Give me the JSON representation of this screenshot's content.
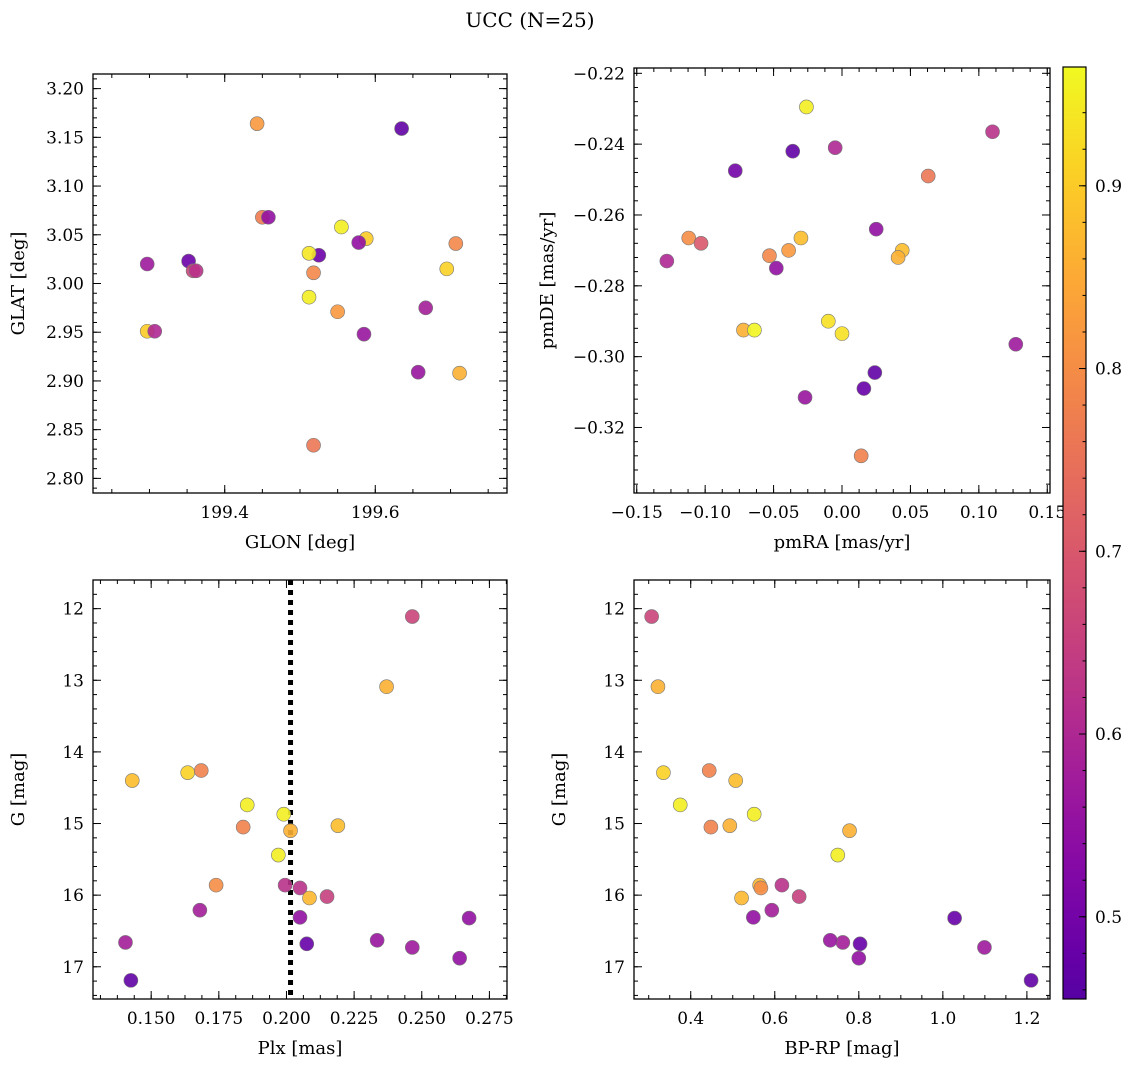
{
  "figure": {
    "title": "UCC (N=25)"
  },
  "colorbar": {
    "cmap": "plasma",
    "vmin": 0.455,
    "vmax": 0.965,
    "ticks": [
      0.5,
      0.6,
      0.7,
      0.8,
      0.9
    ],
    "tick_labels": [
      "0.5",
      "0.6",
      "0.7",
      "0.8",
      "0.9"
    ]
  },
  "chart_data": [
    {
      "type": "scatter",
      "id": "glon-glat",
      "xlabel": "GLON [deg]",
      "ylabel": "GLAT [deg]",
      "xlim": [
        199.225,
        199.775
      ],
      "ylim": [
        2.785,
        3.215
      ],
      "xticks": [
        199.4,
        199.6
      ],
      "xtick_labels": [
        "199.4",
        "199.6"
      ],
      "yticks": [
        2.8,
        2.85,
        2.9,
        2.95,
        3.0,
        3.05,
        3.1,
        3.15,
        3.2
      ],
      "ytick_labels": [
        "2.80",
        "2.85",
        "2.90",
        "2.95",
        "3.00",
        "3.05",
        "3.10",
        "3.15",
        "3.20"
      ],
      "x": [
        199.443,
        199.635,
        199.45,
        199.458,
        199.555,
        199.588,
        199.578,
        199.525,
        199.512,
        199.707,
        199.352,
        199.297,
        199.358,
        199.362,
        199.518,
        199.695,
        199.512,
        199.55,
        199.297,
        199.307,
        199.585,
        199.667,
        199.657,
        199.712,
        199.518
      ],
      "y": [
        3.164,
        3.159,
        3.068,
        3.068,
        3.058,
        3.046,
        3.042,
        3.029,
        3.031,
        3.041,
        3.023,
        3.02,
        3.013,
        3.013,
        3.011,
        3.015,
        2.986,
        2.971,
        2.951,
        2.951,
        2.948,
        2.975,
        2.909,
        2.908,
        2.834
      ],
      "c": [
        0.82,
        0.47,
        0.77,
        0.55,
        0.95,
        0.9,
        0.55,
        0.49,
        0.94,
        0.79,
        0.49,
        0.57,
        0.66,
        0.62,
        0.79,
        0.91,
        0.95,
        0.82,
        0.9,
        0.6,
        0.56,
        0.58,
        0.56,
        0.86,
        0.76
      ]
    },
    {
      "type": "scatter",
      "id": "pmra-pmde",
      "xlabel": "pmRA [mas/yr]",
      "ylabel": "pmDE [mas/yr]",
      "xlim": [
        -0.152,
        0.152
      ],
      "ylim": [
        -0.3385,
        -0.2185
      ],
      "xticks": [
        -0.15,
        -0.1,
        -0.05,
        0.0,
        0.05,
        0.1,
        0.15
      ],
      "xtick_labels": [
        "−0.15",
        "−0.10",
        "−0.05",
        "0.00",
        "0.05",
        "0.10",
        "0.15"
      ],
      "yticks": [
        -0.32,
        -0.3,
        -0.28,
        -0.26,
        -0.24,
        -0.22
      ],
      "ytick_labels": [
        "−0.32",
        "−0.30",
        "−0.28",
        "−0.26",
        "−0.24",
        "−0.22"
      ],
      "x": [
        -0.026,
        0.11,
        -0.036,
        -0.005,
        -0.078,
        0.063,
        0.025,
        -0.03,
        -0.112,
        -0.103,
        -0.128,
        -0.053,
        -0.039,
        -0.048,
        0.044,
        0.041,
        -0.072,
        -0.064,
        -0.01,
        0.0,
        0.127,
        0.024,
        0.016,
        -0.027,
        0.014
      ],
      "y": [
        -0.2295,
        -0.2365,
        -0.242,
        -0.241,
        -0.2475,
        -0.249,
        -0.264,
        -0.2665,
        -0.2665,
        -0.268,
        -0.273,
        -0.2715,
        -0.27,
        -0.275,
        -0.27,
        -0.272,
        -0.2925,
        -0.2925,
        -0.29,
        -0.2935,
        -0.2965,
        -0.3045,
        -0.309,
        -0.3115,
        -0.328
      ],
      "c": [
        0.95,
        0.62,
        0.47,
        0.6,
        0.5,
        0.76,
        0.55,
        0.88,
        0.8,
        0.7,
        0.6,
        0.79,
        0.82,
        0.55,
        0.88,
        0.86,
        0.86,
        0.96,
        0.93,
        0.93,
        0.57,
        0.47,
        0.48,
        0.56,
        0.78
      ]
    },
    {
      "type": "scatter",
      "id": "plx-g",
      "xlabel": "Plx [mas]",
      "ylabel": "G [mag]",
      "xlim": [
        0.1285,
        0.2815
      ],
      "ylim": [
        17.45,
        11.6
      ],
      "xticks": [
        0.15,
        0.175,
        0.2,
        0.225,
        0.25,
        0.275
      ],
      "xtick_labels": [
        "0.150",
        "0.175",
        "0.200",
        "0.225",
        "0.250",
        "0.275"
      ],
      "yticks": [
        12,
        13,
        14,
        15,
        16,
        17
      ],
      "ytick_labels": [
        "12",
        "13",
        "14",
        "15",
        "16",
        "17"
      ],
      "vline": 0.2015,
      "x": [
        0.2465,
        0.237,
        0.143,
        0.1635,
        0.1685,
        0.1855,
        0.199,
        0.184,
        0.219,
        0.2015,
        0.197,
        0.174,
        0.1995,
        0.205,
        0.2085,
        0.215,
        0.168,
        0.205,
        0.2675,
        0.2075,
        0.1405,
        0.2335,
        0.2465,
        0.264,
        0.1425
      ],
      "y": [
        12.11,
        13.09,
        14.4,
        14.29,
        14.26,
        14.74,
        14.87,
        15.05,
        15.03,
        15.1,
        15.44,
        15.86,
        15.86,
        15.9,
        16.04,
        16.02,
        16.21,
        16.31,
        16.32,
        16.68,
        16.66,
        16.63,
        16.73,
        16.88,
        17.19
      ],
      "c": [
        0.66,
        0.86,
        0.88,
        0.91,
        0.78,
        0.95,
        0.95,
        0.78,
        0.88,
        0.86,
        0.95,
        0.8,
        0.62,
        0.62,
        0.87,
        0.65,
        0.58,
        0.55,
        0.55,
        0.48,
        0.58,
        0.56,
        0.57,
        0.55,
        0.47
      ]
    },
    {
      "type": "scatter",
      "id": "bprp-g",
      "xlabel": "BP-RP [mag]",
      "ylabel": "G [mag]",
      "xlim": [
        0.265,
        1.255
      ],
      "ylim": [
        17.45,
        11.6
      ],
      "xticks": [
        0.4,
        0.6,
        0.8,
        1.0,
        1.2
      ],
      "xtick_labels": [
        "0.4",
        "0.6",
        "0.8",
        "1.0",
        "1.2"
      ],
      "yticks": [
        12,
        13,
        14,
        15,
        16,
        17
      ],
      "ytick_labels": [
        "12",
        "13",
        "14",
        "15",
        "16",
        "17"
      ],
      "x": [
        0.307,
        0.322,
        0.335,
        0.375,
        0.444,
        0.448,
        0.493,
        0.507,
        0.551,
        0.778,
        0.75,
        0.564,
        0.567,
        0.617,
        0.521,
        0.658,
        0.593,
        0.549,
        1.028,
        0.762,
        0.732,
        0.803,
        1.099,
        0.8,
        1.21
      ],
      "y": [
        12.11,
        13.09,
        14.29,
        14.74,
        14.26,
        15.05,
        15.03,
        14.4,
        14.87,
        15.1,
        15.44,
        15.86,
        15.9,
        15.86,
        16.04,
        16.02,
        16.21,
        16.31,
        16.32,
        16.66,
        16.63,
        16.68,
        16.73,
        16.88,
        17.19
      ],
      "c": [
        0.66,
        0.86,
        0.91,
        0.95,
        0.78,
        0.78,
        0.86,
        0.88,
        0.95,
        0.86,
        0.95,
        0.87,
        0.8,
        0.62,
        0.87,
        0.65,
        0.58,
        0.55,
        0.48,
        0.58,
        0.56,
        0.48,
        0.57,
        0.55,
        0.47
      ]
    }
  ]
}
